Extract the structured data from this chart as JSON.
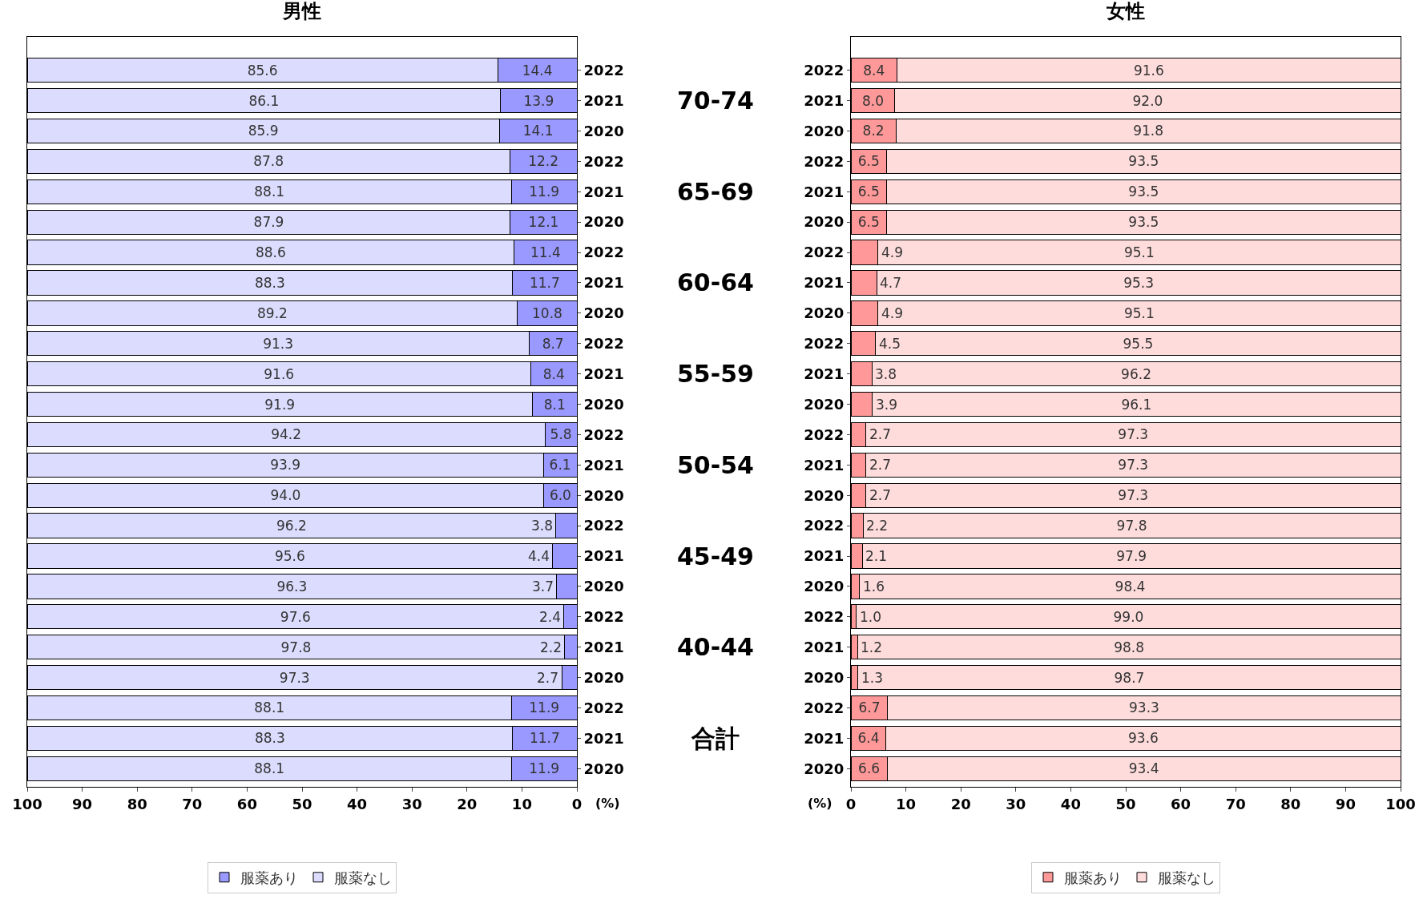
{
  "chart_data": [
    {
      "type": "bar",
      "title": "男性",
      "orientation": "horizontal",
      "stacked": true,
      "xlabel": "(%)",
      "categories": [
        "2022",
        "2021",
        "2020",
        "2022",
        "2021",
        "2020",
        "2022",
        "2021",
        "2020",
        "2022",
        "2021",
        "2020",
        "2022",
        "2021",
        "2020",
        "2022",
        "2021",
        "2020",
        "2022",
        "2021",
        "2020",
        "2022",
        "2021",
        "2020"
      ],
      "xlim": [
        100,
        0
      ],
      "xticks": [
        100,
        90,
        80,
        70,
        60,
        50,
        40,
        30,
        20,
        10,
        0
      ],
      "grid": false,
      "legend": "bottom",
      "annotations": [
        "70-74",
        "65-69",
        "60-64",
        "55-59",
        "50-54",
        "45-49",
        "40-44",
        "合計"
      ],
      "series": [
        {
          "name": "服薬あり",
          "color": "#9999ff",
          "values": [
            14.4,
            13.9,
            14.1,
            12.2,
            11.9,
            12.1,
            11.4,
            11.7,
            10.8,
            8.7,
            8.4,
            8.1,
            5.8,
            6.1,
            6.0,
            3.8,
            4.4,
            3.7,
            2.4,
            2.2,
            2.7,
            11.9,
            11.7,
            11.9
          ],
          "value_labels": [
            "14.4",
            "13.9",
            "14.1",
            "12.2",
            "11.9",
            "12.1",
            "11.4",
            "11.7",
            "10.8",
            "8.7",
            "8.4",
            "8.1",
            "5.8",
            "6.1",
            "6.0",
            "3.8",
            "4.4",
            "3.7",
            "2.4",
            "2.2",
            "2.7",
            "11.9",
            "11.7",
            "11.9"
          ]
        },
        {
          "name": "服薬なし",
          "color": "#dcdcff",
          "values": [
            85.6,
            86.1,
            85.9,
            87.8,
            88.1,
            87.9,
            88.6,
            88.3,
            89.2,
            91.3,
            91.6,
            91.9,
            94.2,
            93.9,
            94.0,
            96.2,
            95.6,
            96.3,
            97.6,
            97.8,
            97.3,
            88.1,
            88.3,
            88.1
          ],
          "value_labels": [
            "85.6",
            "86.1",
            "85.9",
            "87.8",
            "88.1",
            "87.9",
            "88.6",
            "88.3",
            "89.2",
            "91.3",
            "91.6",
            "91.9",
            "94.2",
            "93.9",
            "94.0",
            "96.2",
            "95.6",
            "96.3",
            "97.6",
            "97.8",
            "97.3",
            "88.1",
            "88.3",
            "88.1"
          ]
        }
      ]
    },
    {
      "type": "bar",
      "title": "女性",
      "orientation": "horizontal",
      "stacked": true,
      "xlabel": "(%)",
      "categories": [
        "2022",
        "2021",
        "2020",
        "2022",
        "2021",
        "2020",
        "2022",
        "2021",
        "2020",
        "2022",
        "2021",
        "2020",
        "2022",
        "2021",
        "2020",
        "2022",
        "2021",
        "2020",
        "2022",
        "2021",
        "2020",
        "2022",
        "2021",
        "2020"
      ],
      "xlim": [
        0,
        100
      ],
      "xticks": [
        0,
        10,
        20,
        30,
        40,
        50,
        60,
        70,
        80,
        90,
        100
      ],
      "grid": false,
      "legend": "bottom",
      "series": [
        {
          "name": "服薬あり",
          "color": "#ff9999",
          "values": [
            8.4,
            8.0,
            8.2,
            6.5,
            6.5,
            6.5,
            4.9,
            4.7,
            4.9,
            4.5,
            3.8,
            3.9,
            2.7,
            2.7,
            2.7,
            2.2,
            2.1,
            1.6,
            1.0,
            1.2,
            1.3,
            6.7,
            6.4,
            6.6
          ],
          "value_labels": [
            "8.4",
            "8.0",
            "8.2",
            "6.5",
            "6.5",
            "6.5",
            "4.9",
            "4.7",
            "4.9",
            "4.5",
            "3.8",
            "3.9",
            "2.7",
            "2.7",
            "2.7",
            "2.2",
            "2.1",
            "1.6",
            "1.0",
            "1.2",
            "1.3",
            "6.7",
            "6.4",
            "6.6"
          ]
        },
        {
          "name": "服薬なし",
          "color": "#ffdcdc",
          "values": [
            91.6,
            92.0,
            91.8,
            93.5,
            93.5,
            93.5,
            95.1,
            95.3,
            95.1,
            95.5,
            96.2,
            96.1,
            97.3,
            97.3,
            97.3,
            97.8,
            97.9,
            98.4,
            99.0,
            98.8,
            98.7,
            93.3,
            93.6,
            93.4
          ],
          "value_labels": [
            "91.6",
            "92.0",
            "91.8",
            "93.5",
            "93.5",
            "93.5",
            "95.1",
            "95.3",
            "95.1",
            "95.5",
            "96.2",
            "96.1",
            "97.3",
            "97.3",
            "97.3",
            "97.8",
            "97.9",
            "98.4",
            "99.0",
            "98.8",
            "98.7",
            "93.3",
            "93.6",
            "93.4"
          ]
        }
      ]
    }
  ]
}
